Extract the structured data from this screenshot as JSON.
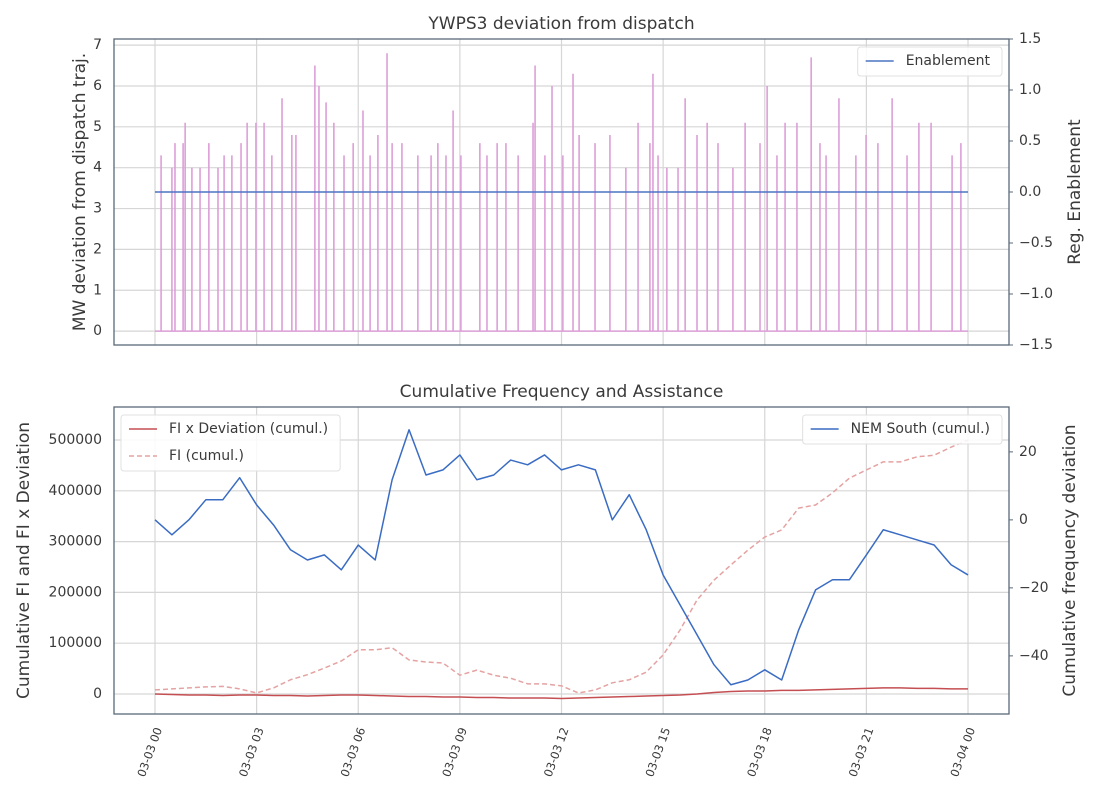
{
  "chart_data": [
    {
      "type": "line",
      "title": "YWPS3 deviation from dispatch",
      "ylabel": "MW deviation from dispatch traj.",
      "y2label": "Reg. Enablement",
      "xlim": [
        -1.21,
        25.21
      ],
      "xticks": [
        0,
        3,
        6,
        9,
        12,
        15,
        18,
        21,
        24
      ],
      "ylim": [
        -0.34,
        7.15
      ],
      "yticks": [
        0,
        1,
        2,
        3,
        4,
        5,
        6,
        7
      ],
      "y2lim": [
        -1.5,
        1.5
      ],
      "y2ticks": [
        {
          "value": -1.5,
          "label": "−1.5"
        },
        {
          "value": -1.0,
          "label": "−1.0"
        },
        {
          "value": -0.5,
          "label": "−0.5"
        },
        {
          "value": 0,
          "label": "0.0"
        },
        0.5,
        {
          "value": 1.0,
          "label": "1.0"
        },
        1.5
      ],
      "grid": true,
      "legend": {
        "y2": "upper right"
      },
      "series": [
        {
          "type": "stem",
          "color": "#dc9fd8",
          "x": [
            0,
            0.18,
            0.5,
            0.59,
            0.83,
            0.89,
            1.09,
            1.33,
            1.59,
            1.86,
            2.04,
            2.27,
            2.54,
            2.72,
            2.98,
            3.22,
            3.45,
            3.75,
            4.04,
            4.16,
            4.72,
            4.84,
            5.05,
            5.28,
            5.58,
            5.85,
            6.14,
            6.35,
            6.58,
            6.85,
            7.0,
            7.29,
            7.76,
            8.15,
            8.35,
            8.59,
            8.8,
            9.03,
            9.59,
            9.8,
            10.1,
            10.36,
            10.72,
            11.16,
            11.22,
            11.51,
            11.72,
            12.04,
            12.34,
            12.52,
            12.99,
            13.43,
            13.9,
            14.26,
            14.61,
            14.7,
            14.85,
            15.11,
            15.44,
            15.65,
            16.0,
            16.3,
            16.62,
            17.06,
            17.42,
            17.86,
            18.07,
            18.36,
            18.6,
            18.95,
            19.37,
            19.63,
            19.81,
            20.19,
            20.69,
            20.99,
            21.34,
            21.76,
            22.2,
            22.55,
            22.91,
            23.53,
            23.79,
            24
          ],
          "values": [
            0,
            4.3,
            4.0,
            4.6,
            4.6,
            5.1,
            4.0,
            4.0,
            4.6,
            4.0,
            4.3,
            4.3,
            4.6,
            5.1,
            5.1,
            5.1,
            4.3,
            5.7,
            4.8,
            4.8,
            6.5,
            6.0,
            5.6,
            5.1,
            4.3,
            4.6,
            5.4,
            4.3,
            4.8,
            6.8,
            4.6,
            4.6,
            4.3,
            4.3,
            4.6,
            4.3,
            5.4,
            4.3,
            4.6,
            4.3,
            4.6,
            4.6,
            4.3,
            5.1,
            6.5,
            4.3,
            6.0,
            4.3,
            6.3,
            4.8,
            4.6,
            4.8,
            4.0,
            5.1,
            4.6,
            6.3,
            4.3,
            4.0,
            4.0,
            5.7,
            4.8,
            5.1,
            4.6,
            4.0,
            5.1,
            4.6,
            6.0,
            4.3,
            5.1,
            5.1,
            6.7,
            4.6,
            4.3,
            5.7,
            4.3,
            4.8,
            4.6,
            5.7,
            4.3,
            5.1,
            5.1,
            4.3,
            4.6,
            0
          ]
        },
        {
          "type": "line",
          "name": "Enablement",
          "color": "#4a74c4",
          "axis": "y2",
          "x": [
            0,
            24
          ],
          "values": [
            0,
            0
          ]
        }
      ]
    },
    {
      "type": "line",
      "title": "Cumulative Frequency and Assistance",
      "ylabel": "Cumulative FI and FI x Deviation",
      "y2label": "Cumulative frequency deviation",
      "xlim": [
        -1.21,
        25.21
      ],
      "xticks": [
        {
          "value": 0,
          "label": "03-03 00"
        },
        {
          "value": 3,
          "label": "03-03 03"
        },
        {
          "value": 6,
          "label": "03-03 06"
        },
        {
          "value": 9,
          "label": "03-03 09"
        },
        {
          "value": 12,
          "label": "03-03 12"
        },
        {
          "value": 15,
          "label": "03-03 15"
        },
        {
          "value": 18,
          "label": "03-03 18"
        },
        {
          "value": 21,
          "label": "03-03 21"
        },
        {
          "value": 24,
          "label": "03-04 00"
        }
      ],
      "ylim": [
        -39400,
        565000
      ],
      "yticks": [
        0,
        100000,
        200000,
        300000,
        400000,
        500000
      ],
      "y2lim": [
        -57.1,
        33.2
      ],
      "y2ticks": [
        {
          "value": -40,
          "label": "−40"
        },
        {
          "value": -20,
          "label": "−20"
        },
        0,
        20
      ],
      "grid": true,
      "legend": {
        "y": "upper left",
        "y2": "upper right"
      },
      "series": [
        {
          "type": "line",
          "name": "FI x Deviation (cumul.)",
          "color": "#c44e52",
          "axis": "y",
          "x": [
            0,
            0.5,
            1,
            1.5,
            2,
            2.5,
            3,
            3.5,
            4,
            4.5,
            5,
            5.5,
            6,
            6.5,
            7,
            7.5,
            8,
            8.5,
            9,
            9.5,
            10,
            10.5,
            11,
            11.5,
            12,
            12.5,
            13,
            13.5,
            14,
            14.5,
            15,
            15.5,
            16,
            16.5,
            17,
            17.5,
            18,
            18.5,
            19,
            19.5,
            20,
            20.5,
            21,
            21.5,
            22,
            22.5,
            23,
            23.5,
            24
          ],
          "values": [
            0,
            -1000,
            -2000,
            -2000,
            -3000,
            -2000,
            -2000,
            -3000,
            -3000,
            -4000,
            -3000,
            -2000,
            -2000,
            -3000,
            -4000,
            -5000,
            -5000,
            -6000,
            -6000,
            -7000,
            -7000,
            -8000,
            -8000,
            -8000,
            -9000,
            -8000,
            -7000,
            -6000,
            -5000,
            -4000,
            -3000,
            -2000,
            0,
            3000,
            5000,
            6000,
            6000,
            7000,
            7000,
            8000,
            9000,
            10000,
            11000,
            12000,
            12000,
            11000,
            11000,
            10000,
            10000
          ]
        },
        {
          "type": "line",
          "name": "FI (cumul.)",
          "color": "#e4a2a2",
          "axis": "y",
          "dashed": true,
          "x": [
            0,
            0.5,
            1,
            1.5,
            2,
            2.5,
            3,
            3.5,
            4,
            4.5,
            5,
            5.5,
            6,
            6.5,
            7,
            7.5,
            8,
            8.5,
            9,
            9.5,
            10,
            10.5,
            11,
            11.5,
            12,
            12.5,
            13,
            13.5,
            14,
            14.5,
            15,
            15.5,
            16,
            16.5,
            17,
            17.5,
            18,
            18.5,
            19,
            19.5,
            20,
            20.5,
            21,
            21.5,
            22,
            22.5,
            23,
            23.5,
            24
          ],
          "values": [
            8000,
            10000,
            12000,
            14000,
            15000,
            10000,
            2000,
            12000,
            28000,
            38000,
            51000,
            65000,
            87000,
            87000,
            91000,
            67000,
            63000,
            61000,
            37000,
            47000,
            37000,
            31000,
            20000,
            20000,
            16000,
            2000,
            8000,
            22000,
            28000,
            43000,
            77000,
            126000,
            185000,
            224000,
            254000,
            283000,
            309000,
            323000,
            366000,
            372000,
            396000,
            425000,
            441000,
            457000,
            457000,
            467000,
            470000,
            486000,
            500000
          ]
        },
        {
          "type": "line",
          "name": "NEM South (cumul.)",
          "color": "#3a6cc3",
          "axis": "y2",
          "x": [
            0,
            0.5,
            1,
            1.5,
            2,
            2.5,
            3,
            3.5,
            4,
            4.5,
            5,
            5.5,
            6,
            6.5,
            7,
            7.5,
            8,
            8.5,
            9,
            9.5,
            10,
            10.5,
            11,
            11.5,
            12,
            12.5,
            13,
            13.5,
            14,
            14.5,
            15,
            15.5,
            16,
            16.5,
            17,
            17.5,
            18,
            18.5,
            19,
            19.5,
            20,
            20.5,
            21,
            21.5,
            22,
            22.5,
            23,
            23.5,
            24
          ],
          "values": [
            0,
            -4.4,
            0,
            5.9,
            5.9,
            12.4,
            4.4,
            -1.5,
            -8.8,
            -11.8,
            -10.3,
            -14.7,
            -7.4,
            -11.8,
            11.8,
            26.5,
            13.2,
            14.7,
            19.1,
            11.8,
            13.2,
            17.6,
            16.2,
            19.1,
            14.7,
            16.2,
            14.7,
            0,
            7.4,
            -2.9,
            -16.2,
            -25,
            -33.8,
            -42.6,
            -48.5,
            -47.1,
            -44.1,
            -47.1,
            -32.4,
            -20.6,
            -17.6,
            -17.6,
            -10.3,
            -2.9,
            -4.4,
            -5.9,
            -7.4,
            -13.2,
            -16.2
          ]
        }
      ]
    }
  ]
}
